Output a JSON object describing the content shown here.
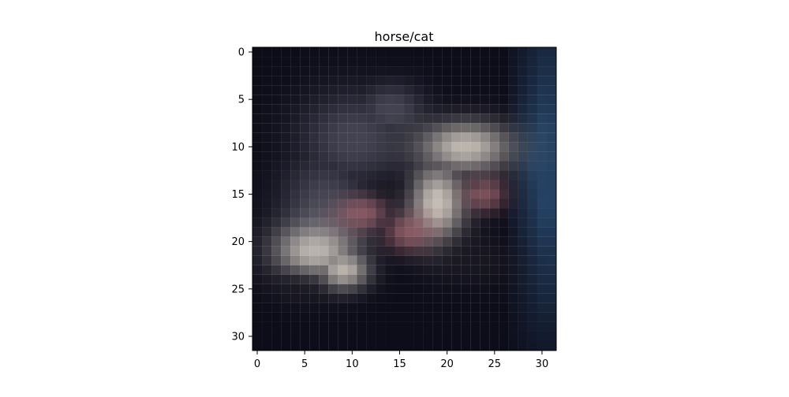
{
  "figure": {
    "title": "horse/cat",
    "x_ticks": [
      "0",
      "5",
      "10",
      "15",
      "20",
      "25",
      "30"
    ],
    "y_ticks": [
      "0",
      "5",
      "10",
      "15",
      "20",
      "25",
      "30"
    ]
  },
  "image": {
    "subject": "blurry low-resolution photo of a cat with a horse-like head on a dark background, 32x32 pixels",
    "grid_size": 32,
    "palette": {
      "background": "#0d0d1a",
      "blue_edge": "#2f5a86",
      "gray_head": "#4d4d5c",
      "light_face": "#d9d2c7",
      "pink_nose": "#a86a73",
      "dark_eye": "#1c1b24"
    }
  }
}
